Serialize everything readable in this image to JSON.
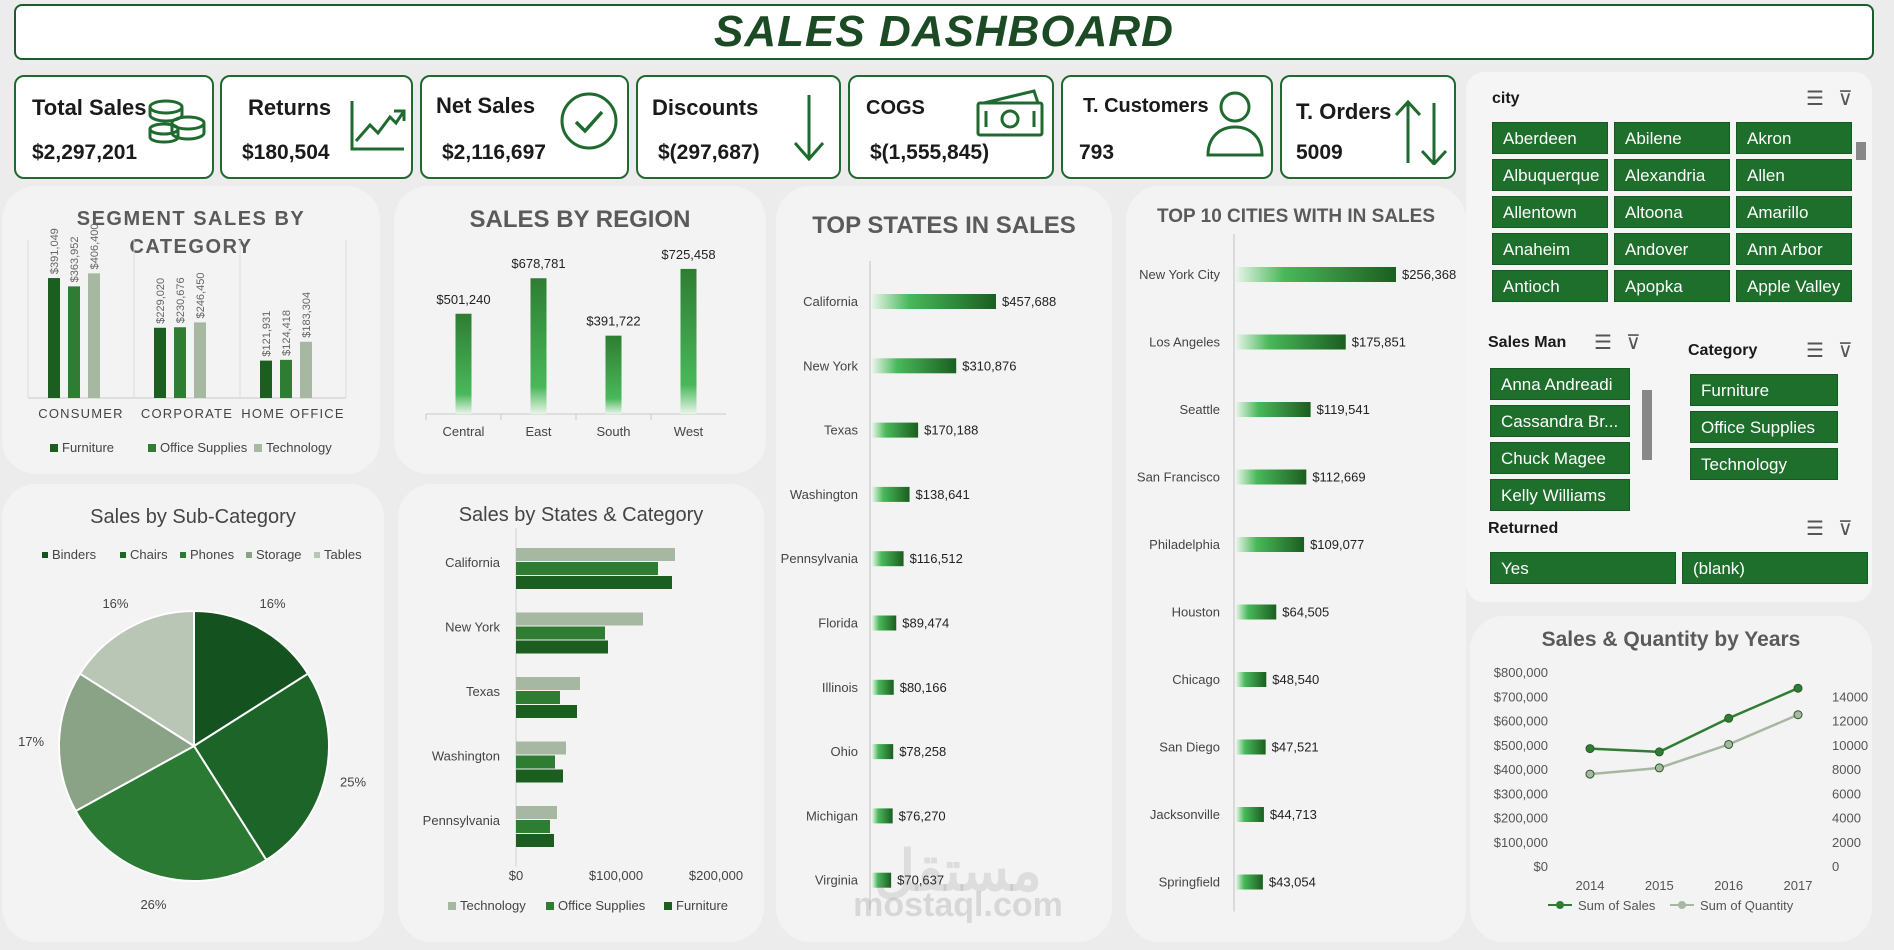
{
  "title": "SALES DASHBOARD",
  "kpis": [
    {
      "label": "Total Sales",
      "value": "$2,297,201",
      "icon": "coins-icon"
    },
    {
      "label": "Returns",
      "value": "$180,504",
      "icon": "trend-up-icon"
    },
    {
      "label": "Net Sales",
      "value": "$2,116,697",
      "icon": "check-circle-icon"
    },
    {
      "label": "Discounts",
      "value": "$(297,687)",
      "icon": "arrow-down-icon"
    },
    {
      "label": "COGS",
      "value": "$(1,555,845)",
      "icon": "money-icon"
    },
    {
      "label": "T. Customers",
      "value": "793",
      "icon": "person-icon"
    },
    {
      "label": "T. Orders",
      "value": "5009",
      "icon": "up-down-arrows-icon"
    }
  ],
  "colors": {
    "dark": "#1b5e20",
    "mid": "#2e7d32",
    "light": "#a6b8a2",
    "accent": "#1e6e2c"
  },
  "segment_chart": {
    "title_line1": "SEGMENT SALES BY",
    "title_line2": "CATEGORY",
    "legend": [
      "Furniture",
      "Office Supplies",
      "Technology"
    ],
    "chart_data": {
      "type": "bar",
      "categories": [
        "CONSUMER",
        "CORPORATE",
        "HOME OFFICE"
      ],
      "series": [
        {
          "name": "Furniture",
          "values": [
            391049,
            229020,
            121931
          ],
          "labels": [
            "$391,049",
            "$229,020",
            "$121,931"
          ]
        },
        {
          "name": "Office Supplies",
          "values": [
            363952,
            230676,
            124418
          ],
          "labels": [
            "$363,952",
            "$230,676",
            "$124,418"
          ]
        },
        {
          "name": "Technology",
          "values": [
            406400,
            246450,
            183304
          ],
          "labels": [
            "$406,400",
            "$246,450",
            "$183,304"
          ]
        }
      ],
      "ylim": [
        0,
        450000
      ]
    }
  },
  "region_chart": {
    "title": "SALES BY REGION",
    "chart_data": {
      "type": "bar",
      "categories": [
        "Central",
        "East",
        "South",
        "West"
      ],
      "values": [
        501240,
        678781,
        391722,
        725458
      ],
      "labels": [
        "$501,240",
        "$678,781",
        "$391,722",
        "$725,458"
      ],
      "ylim": [
        0,
        800000
      ]
    }
  },
  "states_chart": {
    "title": "TOP  STATES IN SALES",
    "chart_data": {
      "type": "bar",
      "categories": [
        "California",
        "New York",
        "Texas",
        "Washington",
        "Pennsylvania",
        "Florida",
        "Illinois",
        "Ohio",
        "Michigan",
        "Virginia"
      ],
      "values": [
        457688,
        310876,
        170188,
        138641,
        116512,
        89474,
        80166,
        78258,
        76270,
        70637
      ],
      "labels": [
        "$457,688",
        "$310,876",
        "$170,188",
        "$138,641",
        "$116,512",
        "$89,474",
        "$80,166",
        "$78,258",
        "$76,270",
        "$70,637"
      ]
    }
  },
  "cities_chart": {
    "title": "TOP 10 CITIES WITH IN SALES",
    "chart_data": {
      "type": "bar",
      "categories": [
        "New York City",
        "Los Angeles",
        "Seattle",
        "San Francisco",
        "Philadelphia",
        "Houston",
        "Chicago",
        "San Diego",
        "Jacksonville",
        "Springfield"
      ],
      "values": [
        256368,
        175851,
        119541,
        112669,
        109077,
        64505,
        48540,
        47521,
        44713,
        43054
      ],
      "labels": [
        "$256,368",
        "$175,851",
        "$119,541",
        "$112,669",
        "$109,077",
        "$64,505",
        "$48,540",
        "$47,521",
        "$44,713",
        "$43,054"
      ]
    }
  },
  "subcat_chart": {
    "title": "Sales by Sub-Category",
    "chart_data": {
      "type": "pie",
      "labels": [
        "Binders",
        "Chairs",
        "Phones",
        "Storage",
        "Tables"
      ],
      "values": [
        16,
        25,
        26,
        17,
        16
      ],
      "pct_labels": [
        "16%",
        "25%",
        "26%",
        "17%",
        "16%"
      ],
      "colors": [
        "#14521f",
        "#1c6428",
        "#2b7a33",
        "#8aa286",
        "#b9c6b6"
      ]
    }
  },
  "states_cat_chart": {
    "title": "Sales by States & Category",
    "legend": [
      "Technology",
      "Office Supplies",
      "Furniture"
    ],
    "chart_data": {
      "type": "bar",
      "categories": [
        "California",
        "New York",
        "Texas",
        "Washington",
        "Pennsylvania"
      ],
      "series": [
        {
          "name": "Technology",
          "values": [
            159000,
            127000,
            64000,
            50000,
            41000
          ]
        },
        {
          "name": "Office Supplies",
          "values": [
            142000,
            89000,
            44000,
            39000,
            34000
          ]
        },
        {
          "name": "Furniture",
          "values": [
            156000,
            92000,
            61000,
            47000,
            38000
          ]
        }
      ],
      "xticks": [
        "$0",
        "$100,000",
        "$200,000"
      ],
      "xlim": [
        0,
        200000
      ]
    }
  },
  "years_chart": {
    "title": "Sales & Quantity by Years",
    "chart_data": {
      "type": "line",
      "x": [
        "2014",
        "2015",
        "2016",
        "2017"
      ],
      "series": [
        {
          "name": "Sum of Sales",
          "values": [
            484247,
            470533,
            609206,
            733215
          ],
          "axis": "left"
        },
        {
          "name": "Sum of Quantity",
          "values": [
            7581,
            8089,
            10024,
            12476
          ],
          "axis": "right"
        }
      ],
      "yleft_ticks": [
        "$800,000",
        "$700,000",
        "$600,000",
        "$500,000",
        "$400,000",
        "$300,000",
        "$200,000",
        "$100,000",
        "$0"
      ],
      "yright_ticks": [
        "14000",
        "12000",
        "10000",
        "8000",
        "6000",
        "4000",
        "2000",
        "0"
      ],
      "ylim_left": [
        0,
        800000
      ],
      "ylim_right": [
        0,
        14000
      ]
    }
  },
  "slicers": {
    "city": {
      "label": "city",
      "items": [
        "Aberdeen",
        "Abilene",
        "Akron",
        "Albuquerque",
        "Alexandria",
        "Allen",
        "Allentown",
        "Altoona",
        "Amarillo",
        "Anaheim",
        "Andover",
        "Ann Arbor",
        "Antioch",
        "Apopka",
        "Apple Valley"
      ]
    },
    "salesman": {
      "label": "Sales Man",
      "items": [
        "Anna Andreadi",
        "Cassandra Br...",
        "Chuck Magee",
        "Kelly Williams"
      ]
    },
    "category": {
      "label": "Category",
      "items": [
        "Furniture",
        "Office Supplies",
        "Technology"
      ]
    },
    "returned": {
      "label": "Returned",
      "items": [
        "Yes",
        "(blank)"
      ]
    }
  },
  "watermark": {
    "arabic": "مستقل",
    "latin": "mostaql.com"
  }
}
